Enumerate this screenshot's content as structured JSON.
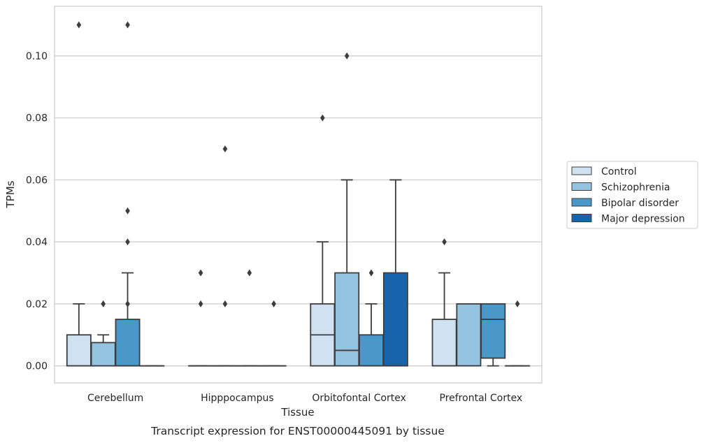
{
  "chart_data": {
    "type": "box",
    "caption": "Transcript expression for ENST00000445091 by tissue",
    "xlabel": "Tissue",
    "ylabel": "TPMs",
    "ylim": [
      -0.0055,
      0.116
    ],
    "yticks": [
      "0.00",
      "0.02",
      "0.04",
      "0.06",
      "0.08",
      "0.10"
    ],
    "ytick_values": [
      0,
      0.02,
      0.04,
      0.06,
      0.08,
      0.1
    ],
    "grid": true,
    "legend_position": "right",
    "categories": [
      "Cerebellum",
      "Hipppocampus",
      "Orbitofontal Cortex",
      "Prefrontal Cortex"
    ],
    "series": [
      {
        "name": "Control",
        "color": "#d0e1f2",
        "boxes": [
          {
            "q1": 0,
            "median": 0,
            "q3": 0.01,
            "whislo": 0,
            "whishi": 0.02,
            "fliers": [
              0.11
            ]
          },
          {
            "q1": 0,
            "median": 0,
            "q3": 0,
            "whislo": 0,
            "whishi": 0,
            "fliers": [
              0.03,
              0.02
            ]
          },
          {
            "q1": 0,
            "median": 0.01,
            "q3": 0.02,
            "whislo": 0,
            "whishi": 0.04,
            "fliers": [
              0.08
            ]
          },
          {
            "q1": 0,
            "median": 0,
            "q3": 0.015,
            "whislo": 0,
            "whishi": 0.03,
            "fliers": [
              0.04
            ]
          }
        ]
      },
      {
        "name": "Schizophrenia",
        "color": "#94c4df",
        "boxes": [
          {
            "q1": 0,
            "median": 0,
            "q3": 0.0075,
            "whislo": 0,
            "whishi": 0.01,
            "fliers": [
              0.02
            ]
          },
          {
            "q1": 0,
            "median": 0,
            "q3": 0,
            "whislo": 0,
            "whishi": 0,
            "fliers": [
              0.07,
              0.02
            ]
          },
          {
            "q1": 0,
            "median": 0.005,
            "q3": 0.03,
            "whislo": 0,
            "whishi": 0.06,
            "fliers": [
              0.1
            ]
          },
          {
            "q1": 0,
            "median": 0,
            "q3": 0.02,
            "whislo": 0,
            "whishi": 0.02,
            "fliers": []
          }
        ]
      },
      {
        "name": "Bipolar disorder",
        "color": "#4a98c9",
        "boxes": [
          {
            "q1": 0,
            "median": 0,
            "q3": 0.015,
            "whislo": 0,
            "whishi": 0.03,
            "fliers": [
              0.11,
              0.05,
              0.04,
              0.02
            ]
          },
          {
            "q1": 0,
            "median": 0,
            "q3": 0,
            "whislo": 0,
            "whishi": 0,
            "fliers": [
              0.03
            ]
          },
          {
            "q1": 0,
            "median": 0,
            "q3": 0.01,
            "whislo": 0,
            "whishi": 0.02,
            "fliers": [
              0.03
            ]
          },
          {
            "q1": 0.0025,
            "median": 0.015,
            "q3": 0.02,
            "whislo": 0,
            "whishi": 0.02,
            "fliers": []
          }
        ]
      },
      {
        "name": "Major depression",
        "color": "#1764ab",
        "boxes": [
          {
            "q1": 0,
            "median": 0,
            "q3": 0,
            "whislo": 0,
            "whishi": 0,
            "fliers": []
          },
          {
            "q1": 0,
            "median": 0,
            "q3": 0,
            "whislo": 0,
            "whishi": 0,
            "fliers": [
              0.02
            ]
          },
          {
            "q1": 0,
            "median": 0,
            "q3": 0.03,
            "whislo": 0,
            "whishi": 0.06,
            "fliers": []
          },
          {
            "q1": 0,
            "median": 0,
            "q3": 0,
            "whislo": 0,
            "whishi": 0,
            "fliers": [
              0.02
            ]
          }
        ]
      }
    ],
    "colors": {
      "line": "#3d3d3d",
      "grid": "#cccccc",
      "frame": "#cccccc",
      "text": "#262626"
    }
  }
}
